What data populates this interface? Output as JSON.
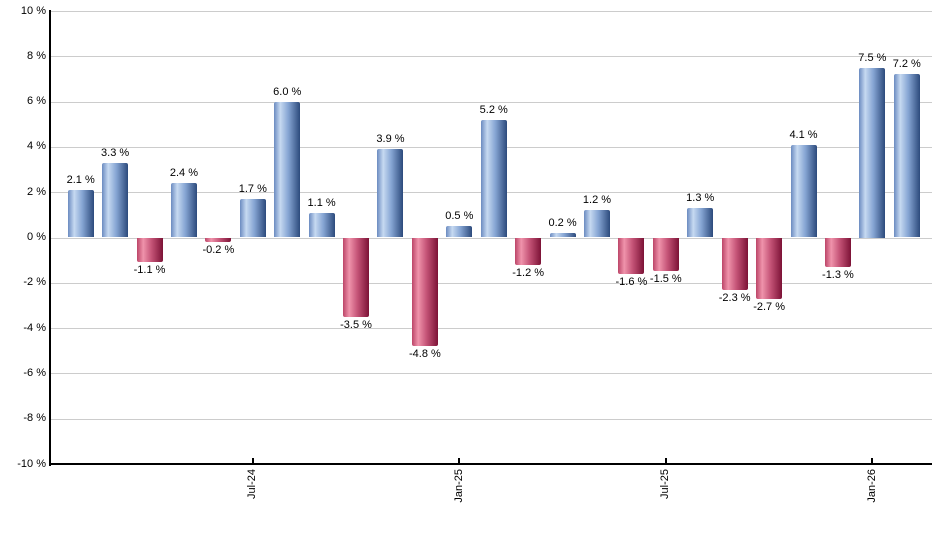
{
  "chart_data": {
    "type": "bar",
    "values": [
      2.1,
      3.3,
      -1.1,
      2.4,
      -0.2,
      1.7,
      6.0,
      1.1,
      -3.5,
      3.9,
      -4.8,
      0.5,
      5.2,
      -1.2,
      0.2,
      1.2,
      -1.6,
      -1.5,
      1.3,
      -2.3,
      -2.7,
      4.1,
      -1.3,
      7.5,
      7.2
    ],
    "bar_labels": [
      "2.1 %",
      "3.3 %",
      "-1.1 %",
      "2.4 %",
      "-0.2 %",
      "1.7 %",
      "6.0 %",
      "1.1 %",
      "-3.5 %",
      "3.9 %",
      "-4.8 %",
      "0.5 %",
      "5.2 %",
      "-1.2 %",
      "0.2 %",
      "1.2 %",
      "-1.6 %",
      "-1.5 %",
      "1.3 %",
      "-2.3 %",
      "-2.7 %",
      "4.1 %",
      "-1.3 %",
      "7.5 %",
      "7.2 %"
    ],
    "x_tick_labels": [
      "Jul-24",
      "Jan-25",
      "Jul-25",
      "Jan-26"
    ],
    "x_tick_bar_indices": [
      5,
      11,
      17,
      23
    ],
    "y_tick_labels": [
      "10 %",
      "8 %",
      "6 %",
      "4 %",
      "2 %",
      "0 %",
      "-2 %",
      "-4 %",
      "-6 %",
      "-8 %",
      "-10 %"
    ],
    "ylim": [
      -10,
      10
    ],
    "y_step": 2,
    "grid": true,
    "legend": "none",
    "title": "",
    "xlabel": "",
    "ylabel": "",
    "colors": {
      "positive_bar_gradient": [
        "#6b8bc0",
        "#c6d9f1",
        "#86a5d3",
        "#2c4a7c"
      ],
      "negative_bar_gradient": [
        "#bc4568",
        "#ef93ab",
        "#c65578",
        "#7c1236"
      ],
      "gridline": "#cccccc",
      "axis": "#000000",
      "label_text": "#000000",
      "background": "#ffffff"
    }
  }
}
